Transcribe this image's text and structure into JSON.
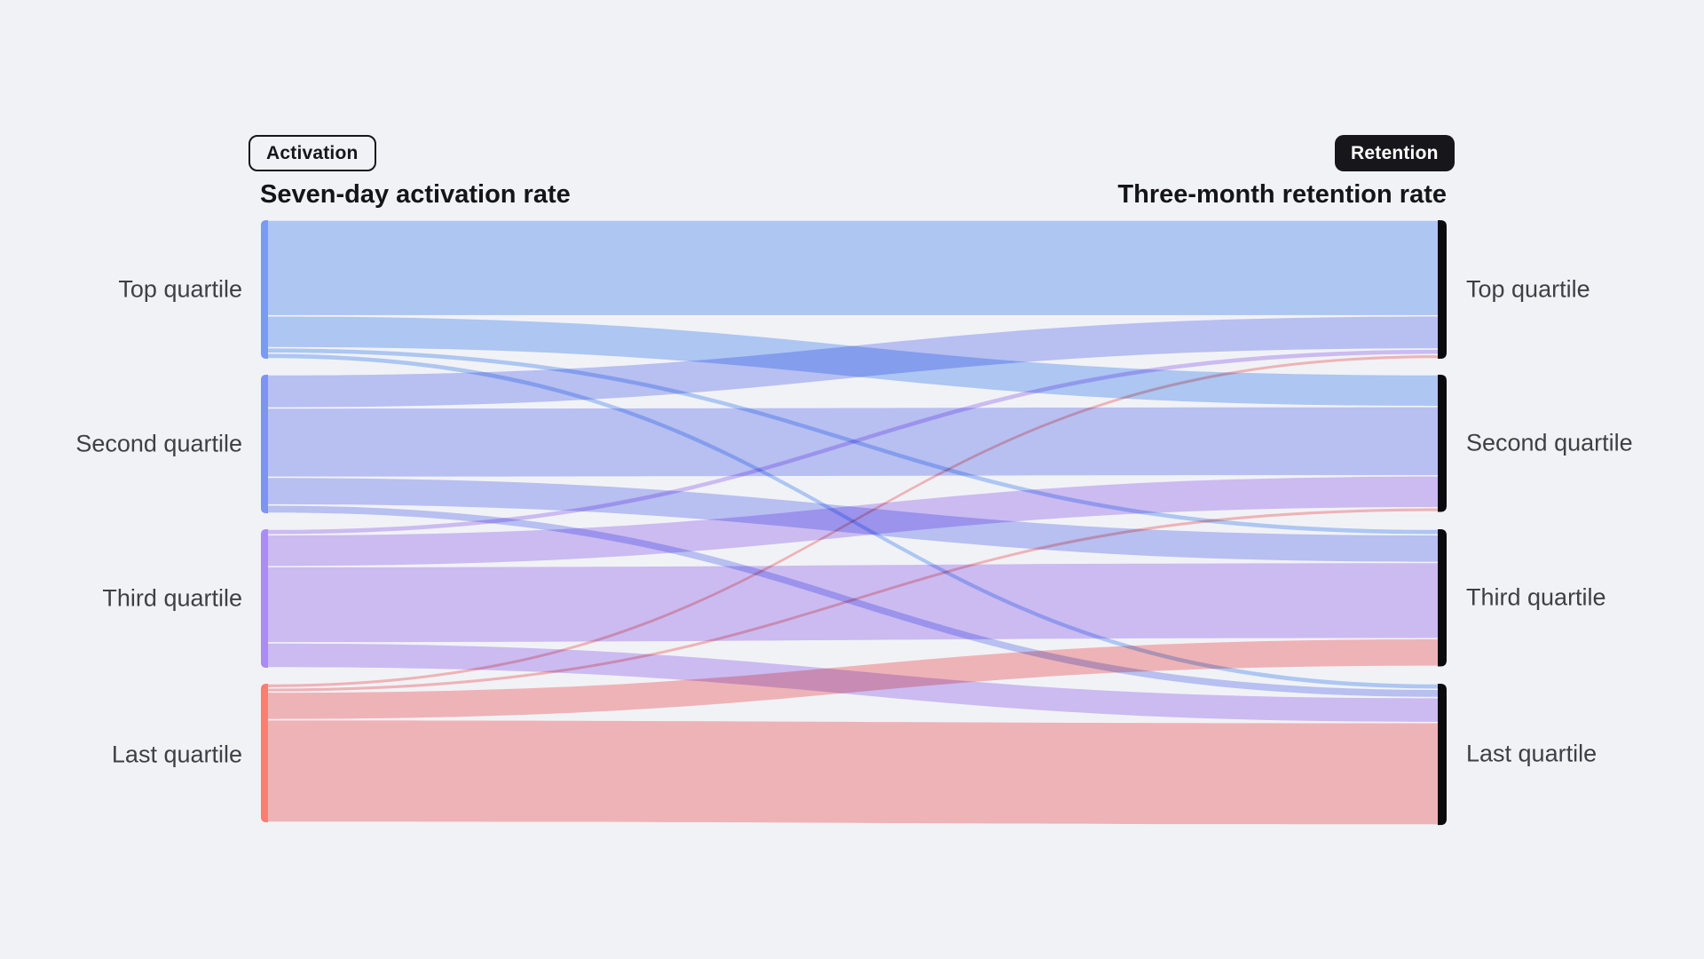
{
  "page": {
    "background_color": "#f1f2f6"
  },
  "header": {
    "activation_tag": "Activation",
    "retention_tag": "Retention",
    "tag_dark_color": "#17171b"
  },
  "chart_data": {
    "type": "sankey",
    "left_title": "Seven-day activation rate",
    "right_title": "Three-month retention rate",
    "left_nodes": [
      "Top quartile",
      "Second quartile",
      "Third quartile",
      "Last quartile"
    ],
    "right_nodes": [
      "Top quartile",
      "Second quartile",
      "Third quartile",
      "Last quartile"
    ],
    "flows_note": "rows = activation quartile (left), cols = retention quartile (right), values = estimated % of left cohort",
    "flows": [
      [
        69,
        23,
        4,
        4
      ],
      [
        24,
        50,
        20,
        6
      ],
      [
        4,
        23,
        55,
        18
      ],
      [
        3,
        3,
        20,
        74
      ]
    ],
    "flow_colors": [
      "#b7d1fb",
      "#c3cafa",
      "#d7c5fa",
      "#fcbdbe"
    ],
    "left_node_colors": [
      "#7b9af4",
      "#7d94f2",
      "#aa8cf4",
      "#fb7d73"
    ],
    "right_node_color": "#0b0b0e",
    "legend_position": "none",
    "grid": false
  }
}
